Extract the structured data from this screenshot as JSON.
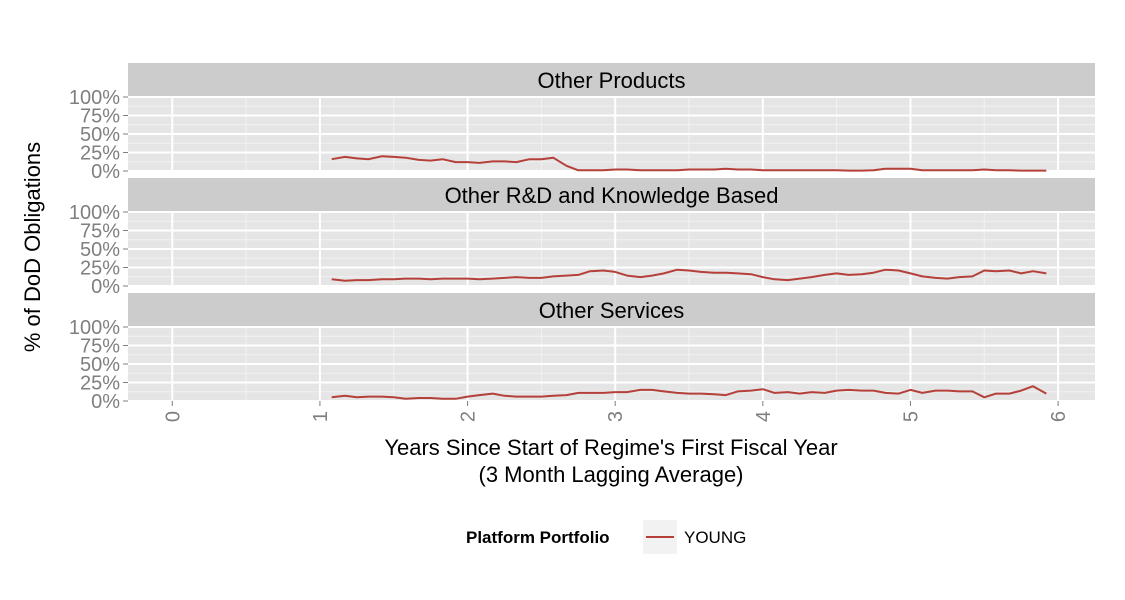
{
  "chart_data": {
    "type": "line",
    "xlabel": "Years Since Start of Regime's First Fiscal Year",
    "xlabel_sub": "(3 Month Lagging Average)",
    "ylabel": "% of DoD Obligations",
    "xlim": [
      -0.3,
      6.25
    ],
    "ylim": [
      0,
      1
    ],
    "x_ticks": [
      0,
      1,
      2,
      3,
      4,
      5,
      6
    ],
    "x_tick_labels": [
      "0",
      "1",
      "2",
      "3",
      "4",
      "5",
      "6"
    ],
    "y_ticks": [
      0,
      0.25,
      0.5,
      0.75,
      1
    ],
    "y_tick_labels": [
      "0%",
      "25%",
      "50%",
      "75%",
      "100%"
    ],
    "grid": true,
    "legend": {
      "title": "Platform Portfolio",
      "position": "bottom",
      "entries": [
        {
          "name": "YOUNG",
          "color": "#b5403a"
        }
      ]
    },
    "x": [
      1.08,
      1.17,
      1.25,
      1.33,
      1.42,
      1.5,
      1.58,
      1.67,
      1.75,
      1.83,
      1.92,
      2.0,
      2.08,
      2.17,
      2.25,
      2.33,
      2.42,
      2.5,
      2.58,
      2.67,
      2.75,
      2.83,
      2.92,
      3.0,
      3.08,
      3.17,
      3.25,
      3.33,
      3.42,
      3.5,
      3.58,
      3.67,
      3.75,
      3.83,
      3.92,
      4.0,
      4.08,
      4.17,
      4.25,
      4.33,
      4.42,
      4.5,
      4.58,
      4.67,
      4.75,
      4.83,
      4.92,
      5.0,
      5.08,
      5.17,
      5.25,
      5.33,
      5.42,
      5.5,
      5.58,
      5.67,
      5.75,
      5.83,
      5.92
    ],
    "panels": [
      {
        "title": "Other Products",
        "series": [
          {
            "name": "YOUNG",
            "color": "#b5403a",
            "values": [
              0.16,
              0.19,
              0.17,
              0.16,
              0.2,
              0.19,
              0.18,
              0.15,
              0.14,
              0.16,
              0.12,
              0.12,
              0.11,
              0.13,
              0.13,
              0.12,
              0.16,
              0.16,
              0.18,
              0.07,
              0.01,
              0.01,
              0.01,
              0.02,
              0.02,
              0.01,
              0.01,
              0.01,
              0.01,
              0.02,
              0.02,
              0.02,
              0.03,
              0.02,
              0.02,
              0.01,
              0.01,
              0.01,
              0.01,
              0.01,
              0.01,
              0.01,
              0.005,
              0.005,
              0.01,
              0.03,
              0.03,
              0.03,
              0.01,
              0.01,
              0.01,
              0.01,
              0.01,
              0.02,
              0.01,
              0.01,
              0.005,
              0.005,
              0.005
            ]
          }
        ]
      },
      {
        "title": "Other R&D and Knowledge Based",
        "series": [
          {
            "name": "YOUNG",
            "color": "#b5403a",
            "values": [
              0.09,
              0.07,
              0.08,
              0.08,
              0.09,
              0.09,
              0.1,
              0.1,
              0.09,
              0.1,
              0.1,
              0.1,
              0.09,
              0.1,
              0.11,
              0.12,
              0.11,
              0.11,
              0.13,
              0.14,
              0.15,
              0.2,
              0.21,
              0.19,
              0.14,
              0.12,
              0.14,
              0.17,
              0.22,
              0.21,
              0.19,
              0.18,
              0.18,
              0.17,
              0.16,
              0.12,
              0.09,
              0.08,
              0.1,
              0.12,
              0.15,
              0.17,
              0.15,
              0.16,
              0.18,
              0.22,
              0.21,
              0.17,
              0.13,
              0.11,
              0.1,
              0.12,
              0.13,
              0.21,
              0.2,
              0.21,
              0.17,
              0.2,
              0.17
            ]
          }
        ]
      },
      {
        "title": "Other Services",
        "series": [
          {
            "name": "YOUNG",
            "color": "#b5403a",
            "values": [
              0.05,
              0.07,
              0.05,
              0.06,
              0.06,
              0.05,
              0.03,
              0.04,
              0.04,
              0.03,
              0.03,
              0.06,
              0.08,
              0.1,
              0.07,
              0.06,
              0.06,
              0.06,
              0.07,
              0.08,
              0.11,
              0.11,
              0.11,
              0.12,
              0.12,
              0.15,
              0.15,
              0.13,
              0.11,
              0.1,
              0.1,
              0.09,
              0.08,
              0.13,
              0.14,
              0.16,
              0.11,
              0.12,
              0.1,
              0.12,
              0.11,
              0.14,
              0.15,
              0.14,
              0.14,
              0.11,
              0.1,
              0.15,
              0.11,
              0.14,
              0.14,
              0.13,
              0.13,
              0.05,
              0.1,
              0.1,
              0.14,
              0.2,
              0.1
            ]
          }
        ]
      }
    ]
  }
}
